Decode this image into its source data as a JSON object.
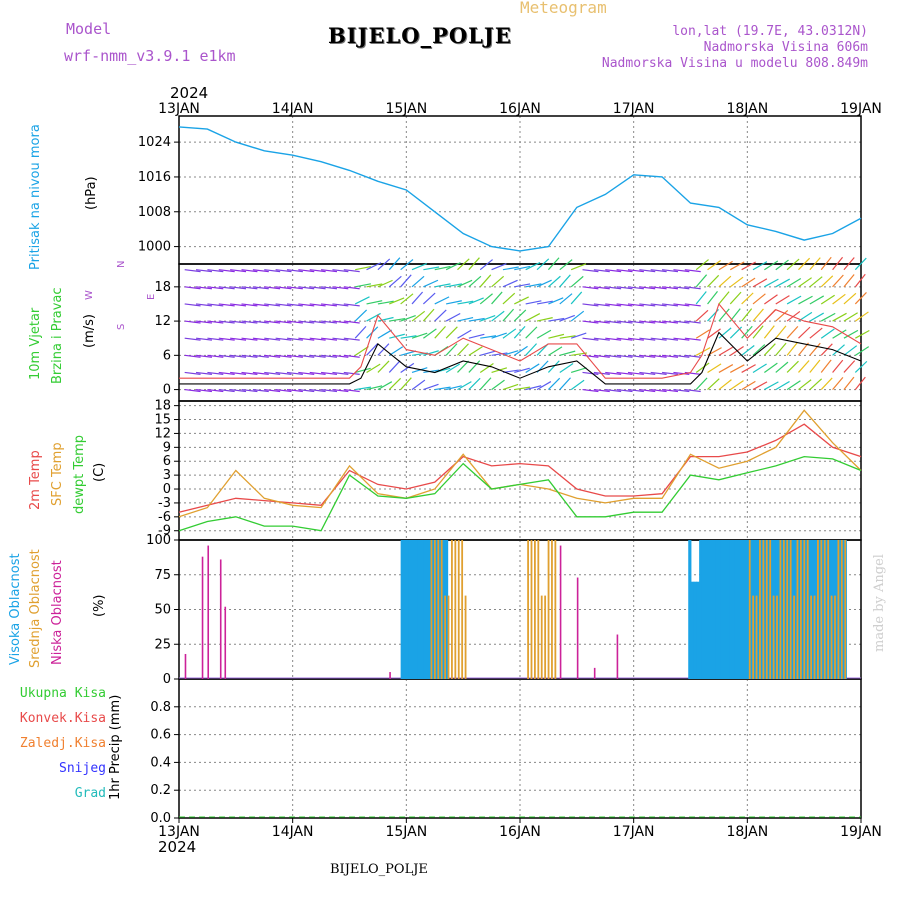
{
  "header": {
    "model_label": "Model",
    "model_name": "wrf-nmm_v3.9.1 e1km",
    "title": "BIJELO_POLJE",
    "subtitle": "Meteogram",
    "coords": "lon,lat (19.7E, 43.0312N)",
    "altitude": "Nadmorska Visina 606m",
    "model_altitude": "Nadmorska Visina u modelu 808.849m",
    "year_top": "2024",
    "year_bottom": "2024",
    "footer_station": "BIJELO_POLJE",
    "watermark": "made by Angel"
  },
  "panel_labels": {
    "pressure": [
      "Pritisak na nivou mora",
      "(hPa)"
    ],
    "wind": [
      "10m Vjetar",
      "Brzina i Pravac",
      "(m/s)"
    ],
    "compass": [
      "N",
      "W",
      "E",
      "S"
    ],
    "temp": [
      "2m Temp",
      "SFC Temp",
      "dewpt Temp",
      "(C)"
    ],
    "cloud": [
      "Visoka Oblacnost",
      "Srednja Oblacnost",
      "Niska Oblacnost",
      "(%)"
    ],
    "precip": [
      "Ukupna Kisa",
      "Konvek.Kisa",
      "Zaledj.Kisa",
      "Snijeg",
      "Grad",
      "1hr Precip (mm)"
    ]
  },
  "colors": {
    "pressure": "#1aa3e6",
    "temp2m": "#e84a4a",
    "sfc": "#e0a030",
    "dewpt": "#33cc33",
    "high_cloud": "#1aa3e6",
    "mid_cloud": "#e0a030",
    "low_cloud": "#cc2299",
    "title_purple": "#aa55cc",
    "subtitle_orange": "#e8c070",
    "total_rain": "#33cc33",
    "conv_rain": "#e84a4a",
    "freezing_rain": "#f08030",
    "snow": "#3333ff",
    "hail": "#22bbbb",
    "wind_speed": "#000000",
    "wind_gust": "#e84a4a"
  },
  "chart_data": [
    {
      "type": "line",
      "panel": "pressure",
      "xlabels": [
        "13JAN",
        "14JAN",
        "15JAN",
        "16JAN",
        "17JAN",
        "18JAN",
        "19JAN"
      ],
      "yticks": [
        1000,
        1008,
        1016,
        1024
      ],
      "ylim": [
        996,
        1030
      ],
      "x": [
        0,
        0.25,
        0.5,
        0.75,
        1,
        1.25,
        1.5,
        1.75,
        2,
        2.25,
        2.5,
        2.75,
        3,
        3.25,
        3.5,
        3.75,
        4,
        4.25,
        4.5,
        4.75,
        5,
        5.25,
        5.5,
        5.75,
        6
      ],
      "series": [
        {
          "name": "Pritisak na nivou mora",
          "values": [
            1027.5,
            1027,
            1024,
            1022,
            1021,
            1019.5,
            1017.5,
            1015,
            1013,
            1008,
            1003,
            1000,
            999,
            1000,
            1009,
            1012,
            1016.5,
            1016,
            1010,
            1009,
            1005,
            1003.5,
            1001.5,
            1003,
            1006.5
          ]
        }
      ]
    },
    {
      "type": "line",
      "panel": "wind",
      "yticks": [
        0,
        6,
        12,
        18
      ],
      "ylim": [
        -2,
        22
      ],
      "x": [
        0,
        0.5,
        1,
        1.25,
        1.5,
        1.6,
        1.75,
        2,
        2.25,
        2.5,
        2.75,
        3,
        3.25,
        3.5,
        3.75,
        4,
        4.25,
        4.5,
        4.6,
        4.75,
        5,
        5.25,
        5.5,
        5.75,
        6
      ],
      "series": [
        {
          "name": "speed",
          "values": [
            1,
            1,
            1,
            1,
            1,
            2,
            8,
            4,
            3,
            5,
            4,
            2,
            4,
            5,
            1,
            1,
            1,
            1,
            3,
            10,
            5,
            9,
            8,
            7,
            5
          ]
        },
        {
          "name": "gust",
          "values": [
            2,
            2,
            2,
            2,
            2,
            4,
            13,
            7,
            6,
            9,
            7,
            5,
            8,
            8,
            2,
            2,
            2,
            3,
            6,
            15,
            9,
            14,
            12,
            11,
            8
          ]
        }
      ]
    },
    {
      "type": "line",
      "panel": "temp",
      "yticks": [
        -9,
        -6,
        -3,
        0,
        3,
        6,
        9,
        12,
        15,
        18
      ],
      "ylim": [
        -11,
        19
      ],
      "x": [
        0,
        0.25,
        0.5,
        0.75,
        1,
        1.25,
        1.5,
        1.75,
        2,
        2.25,
        2.5,
        2.75,
        3,
        3.25,
        3.5,
        3.75,
        4,
        4.25,
        4.5,
        4.75,
        5,
        5.25,
        5.5,
        5.75,
        6
      ],
      "series": [
        {
          "name": "2m Temp",
          "values": [
            -5,
            -3.5,
            -2,
            -2.5,
            -3,
            -3.5,
            4,
            1,
            0,
            1.5,
            7,
            5,
            5.5,
            5,
            0,
            -1.5,
            -1.5,
            -1,
            7,
            7,
            8,
            10.5,
            14,
            9,
            7
          ]
        },
        {
          "name": "SFC Temp",
          "values": [
            -6,
            -4,
            4,
            -2,
            -3.5,
            -4,
            5,
            -1,
            -2,
            0,
            7.5,
            0,
            1,
            0,
            -2,
            -3,
            -2,
            -2,
            7.5,
            4.5,
            6,
            9,
            17,
            10,
            4
          ]
        },
        {
          "name": "dewpt Temp",
          "values": [
            -9,
            -7,
            -6,
            -8,
            -8,
            -9,
            3,
            -1.5,
            -2,
            -1,
            5.5,
            0,
            1,
            2,
            -6,
            -6,
            -5,
            -5,
            3,
            2,
            3.5,
            5,
            7,
            6.5,
            4
          ]
        }
      ]
    },
    {
      "type": "bar",
      "panel": "cloud",
      "yticks": [
        0,
        25,
        50,
        75,
        100
      ],
      "ylim": [
        0,
        100
      ],
      "series": [
        {
          "name": "Visoka Oblacnost",
          "segments": [
            [
              1.95,
              2.1
            ],
            [
              2.1,
              2.35
            ],
            [
              4.48,
              5.85
            ]
          ]
        },
        {
          "name": "Srednja Oblacnost",
          "segments": [
            [
              2.2,
              2.5
            ],
            [
              3.05,
              3.3
            ],
            [
              5.0,
              5.85
            ]
          ]
        },
        {
          "name": "Niska Oblacnost",
          "bars": [
            [
              0.05,
              18
            ],
            [
              0.2,
              88
            ],
            [
              0.25,
              96
            ],
            [
              0.36,
              86
            ],
            [
              0.4,
              52
            ],
            [
              1.85,
              5
            ],
            [
              3.35,
              96
            ],
            [
              3.5,
              73
            ],
            [
              3.65,
              8
            ],
            [
              3.85,
              32
            ]
          ]
        }
      ]
    },
    {
      "type": "area",
      "panel": "precip",
      "yticks": [
        0,
        0.2,
        0.4,
        0.6,
        0.8
      ],
      "ylim": [
        0,
        1.0
      ],
      "series": [
        {
          "name": "Ukupna Kisa",
          "values": [
            0,
            0,
            0,
            0,
            0,
            0,
            0
          ]
        }
      ]
    }
  ]
}
